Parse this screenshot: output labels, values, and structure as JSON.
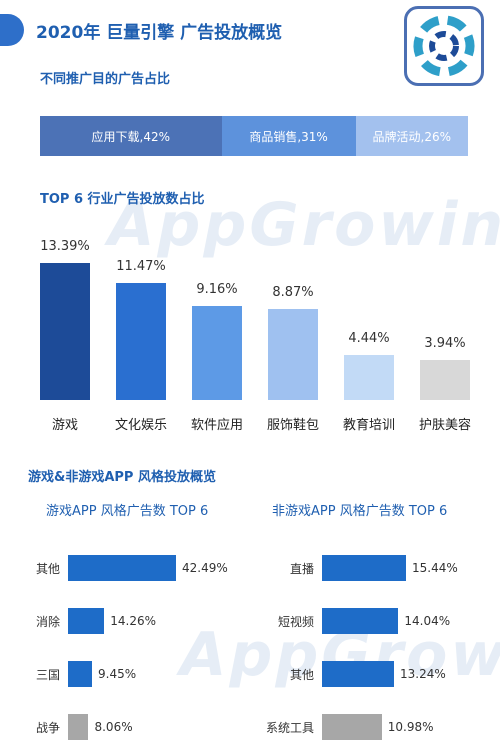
{
  "header": {
    "title": "2020年 巨量引擎 广告投放概览"
  },
  "colors": {
    "blue_dark": "#1d4b98",
    "blue_mid": "#2a6fd0",
    "blue_light": "#5d9ae6",
    "blue_pale": "#9fc1f0",
    "blue_faint": "#c2daf6",
    "gray": "#d8d8d8",
    "hbar_blue": "#1e6cc8",
    "hbar_gray": "#a7a7a7"
  },
  "watermark_text": "AppGrowing",
  "chart_data": [
    {
      "type": "bar",
      "title": "不同推广目的广告占比",
      "stacked": true,
      "categories": [
        "应用下载",
        "商品销售",
        "品牌活动"
      ],
      "values": [
        42,
        31,
        26
      ],
      "labels": [
        "应用下载,42%",
        "商品销售,31%",
        "品牌活动,26%"
      ],
      "colors": [
        "#4c72b6",
        "#5d92dc",
        "#a3c1ee"
      ]
    },
    {
      "type": "bar",
      "title": "TOP 6 行业广告投放数占比",
      "categories": [
        "游戏",
        "文化娱乐",
        "软件应用",
        "服饰鞋包",
        "教育培训",
        "护肤美容"
      ],
      "values": [
        13.39,
        11.47,
        9.16,
        8.87,
        4.44,
        3.94
      ],
      "value_labels": [
        "13.39%",
        "11.47%",
        "9.16%",
        "8.87%",
        "4.44%",
        "3.94%"
      ],
      "ylim": [
        0,
        13.39
      ],
      "colors": [
        "#1d4b98",
        "#2a6fd0",
        "#5d9ae6",
        "#9fc1f0",
        "#c2daf6",
        "#d8d8d8"
      ]
    },
    {
      "type": "bar",
      "orientation": "horizontal",
      "section_title": "游戏&非游戏APP 风格投放概览",
      "title": "游戏APP 风格广告数 TOP 6",
      "categories": [
        "其他",
        "消除",
        "三国",
        "战争"
      ],
      "values": [
        42.49,
        14.26,
        9.45,
        8.06
      ],
      "value_labels": [
        "42.49%",
        "14.26%",
        "9.45%",
        "8.06%"
      ],
      "xlim": [
        0,
        42.49
      ],
      "colors": [
        "#1e6cc8",
        "#1e6cc8",
        "#1e6cc8",
        "#a7a7a7"
      ]
    },
    {
      "type": "bar",
      "orientation": "horizontal",
      "title": "非游戏APP 风格广告数 TOP 6",
      "categories": [
        "直播",
        "短视频",
        "其他",
        "系统工具"
      ],
      "values": [
        15.44,
        14.04,
        13.24,
        10.98
      ],
      "value_labels": [
        "15.44%",
        "14.04%",
        "13.24%",
        "10.98%"
      ],
      "xlim": [
        0,
        15.44
      ],
      "colors": [
        "#1e6cc8",
        "#1e6cc8",
        "#1e6cc8",
        "#a7a7a7"
      ]
    }
  ]
}
